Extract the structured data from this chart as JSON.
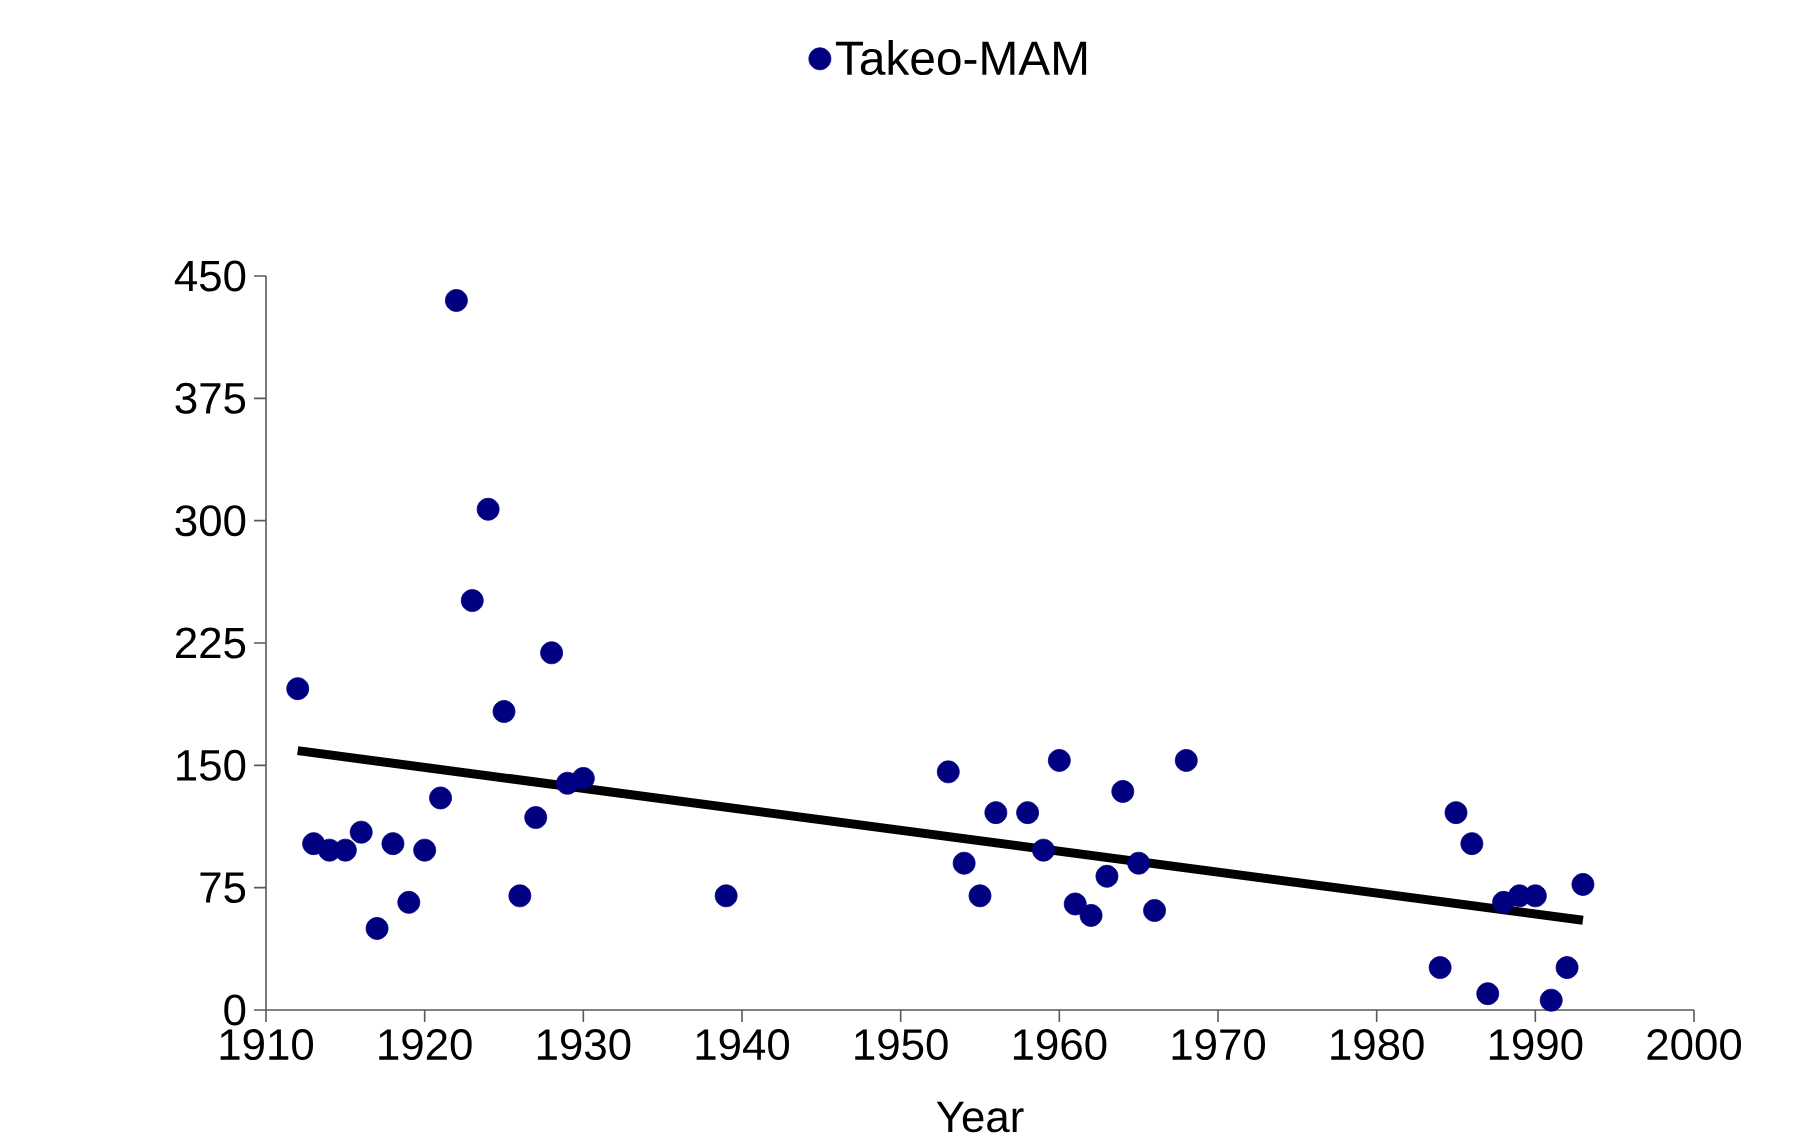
{
  "chart_data": {
    "type": "scatter",
    "xlabel": "Year",
    "legend": "top",
    "xlim": [
      1910,
      2000
    ],
    "xticks": [
      1910,
      1920,
      1930,
      1940,
      1950,
      1960,
      1970,
      1980,
      1990,
      2000
    ],
    "ylim": [
      0,
      450
    ],
    "yticks": [
      0,
      75,
      150,
      225,
      300,
      375,
      450
    ],
    "series": [
      {
        "name": "Takeo-MAM",
        "color": "#000080",
        "x": [
          1912,
          1913,
          1914,
          1915,
          1916,
          1917,
          1918,
          1919,
          1920,
          1921,
          1922,
          1923,
          1924,
          1925,
          1926,
          1927,
          1928,
          1929,
          1930,
          1939,
          1953,
          1954,
          1955,
          1956,
          1958,
          1959,
          1960,
          1961,
          1962,
          1963,
          1964,
          1965,
          1966,
          1968,
          1984,
          1985,
          1986,
          1987,
          1988,
          1989,
          1990,
          1991,
          1992,
          1993
        ],
        "values": [
          197,
          102,
          98,
          98,
          109,
          50,
          102,
          66,
          98,
          130,
          435,
          251,
          307,
          183,
          70,
          118,
          219,
          139,
          142,
          70,
          146,
          90,
          70,
          121,
          121,
          98,
          153,
          65,
          58,
          82,
          134,
          90,
          61,
          153,
          26,
          121,
          102,
          10,
          66,
          70,
          70,
          6,
          26,
          77
        ]
      },
      {
        "type": "line",
        "color": "#000000",
        "x": [
          1912,
          1993
        ],
        "values": [
          159,
          55
        ]
      }
    ]
  }
}
